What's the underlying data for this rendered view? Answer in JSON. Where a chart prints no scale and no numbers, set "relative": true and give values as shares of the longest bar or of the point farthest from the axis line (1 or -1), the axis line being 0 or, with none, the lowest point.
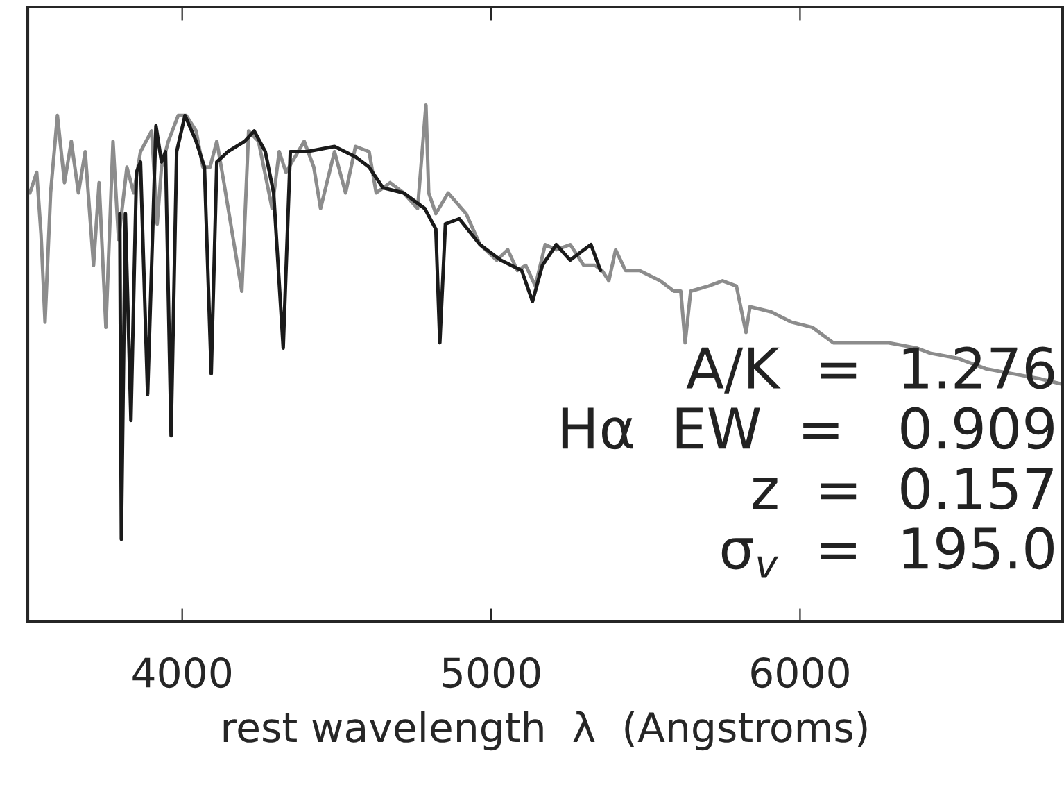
{
  "chart_data": {
    "type": "line",
    "relative": true,
    "xlabel": "rest wavelength  λ  (Angstroms)",
    "xlim": [
      3500,
      6850
    ],
    "xticks": [
      4000,
      5000,
      6000
    ],
    "tick_labels": "x",
    "grid": false,
    "series": [
      {
        "color": "#8c8c8c",
        "x": [
          3507,
          3529,
          3543,
          3556,
          3574,
          3596,
          3619,
          3641,
          3664,
          3686,
          3713,
          3731,
          3753,
          3776,
          3794,
          3821,
          3843,
          3865,
          3901,
          3919,
          3933,
          3955,
          3987,
          4013,
          4045,
          4067,
          4090,
          4112,
          4135,
          4193,
          4215,
          4247,
          4291,
          4314,
          4336,
          4395,
          4426,
          4448,
          4493,
          4529,
          4561,
          4605,
          4628,
          4673,
          4717,
          4762,
          4789,
          4798,
          4821,
          4861,
          4919,
          4964,
          5018,
          5054,
          5085,
          5112,
          5143,
          5175,
          5211,
          5256,
          5300,
          5336,
          5359,
          5381,
          5403,
          5435,
          5480,
          5547,
          5592,
          5614,
          5628,
          5646,
          5704,
          5749,
          5794,
          5825,
          5838,
          5906,
          5973,
          6040,
          6108,
          6197,
          6287,
          6377,
          6421,
          6511,
          6601,
          6690,
          6780,
          6850
        ],
        "values": [
          0.83,
          0.87,
          0.75,
          0.58,
          0.83,
          0.98,
          0.85,
          0.93,
          0.83,
          0.91,
          0.69,
          0.85,
          0.57,
          0.93,
          0.74,
          0.88,
          0.83,
          0.91,
          0.95,
          0.77,
          0.88,
          0.93,
          0.98,
          0.98,
          0.95,
          0.88,
          0.88,
          0.93,
          0.85,
          0.64,
          0.95,
          0.93,
          0.8,
          0.91,
          0.87,
          0.93,
          0.88,
          0.8,
          0.91,
          0.83,
          0.92,
          0.91,
          0.83,
          0.85,
          0.83,
          0.8,
          1.0,
          0.83,
          0.79,
          0.83,
          0.79,
          0.73,
          0.7,
          0.72,
          0.68,
          0.69,
          0.65,
          0.73,
          0.72,
          0.73,
          0.69,
          0.69,
          0.68,
          0.66,
          0.72,
          0.68,
          0.68,
          0.66,
          0.64,
          0.64,
          0.54,
          0.64,
          0.65,
          0.66,
          0.65,
          0.56,
          0.61,
          0.6,
          0.58,
          0.57,
          0.54,
          0.54,
          0.54,
          0.53,
          0.52,
          0.51,
          0.49,
          0.48,
          0.47,
          0.46
        ]
      },
      {
        "color": "#1a1a1a",
        "x": [
          3798,
          3803,
          3816,
          3834,
          3852,
          3865,
          3888,
          3915,
          3933,
          3946,
          3964,
          3982,
          4009,
          4045,
          4072,
          4094,
          4112,
          4148,
          4202,
          4233,
          4269,
          4296,
          4327,
          4350,
          4404,
          4493,
          4561,
          4605,
          4650,
          4717,
          4785,
          4821,
          4834,
          4852,
          4897,
          4964,
          5031,
          5099,
          5134,
          5166,
          5211,
          5256,
          5300,
          5323,
          5354
        ],
        "values": [
          0.79,
          0.16,
          0.79,
          0.39,
          0.87,
          0.89,
          0.44,
          0.96,
          0.89,
          0.91,
          0.36,
          0.91,
          0.98,
          0.93,
          0.88,
          0.48,
          0.89,
          0.91,
          0.93,
          0.95,
          0.91,
          0.83,
          0.53,
          0.91,
          0.91,
          0.92,
          0.9,
          0.88,
          0.84,
          0.83,
          0.8,
          0.76,
          0.54,
          0.77,
          0.78,
          0.73,
          0.7,
          0.68,
          0.62,
          0.69,
          0.73,
          0.7,
          0.72,
          0.73,
          0.68
        ]
      }
    ],
    "annotations": [
      "A/K  =  1.276",
      "Hα  EW  =   0.909",
      "z  =  0.157",
      "σ$_{v}$  =  195.0"
    ]
  }
}
